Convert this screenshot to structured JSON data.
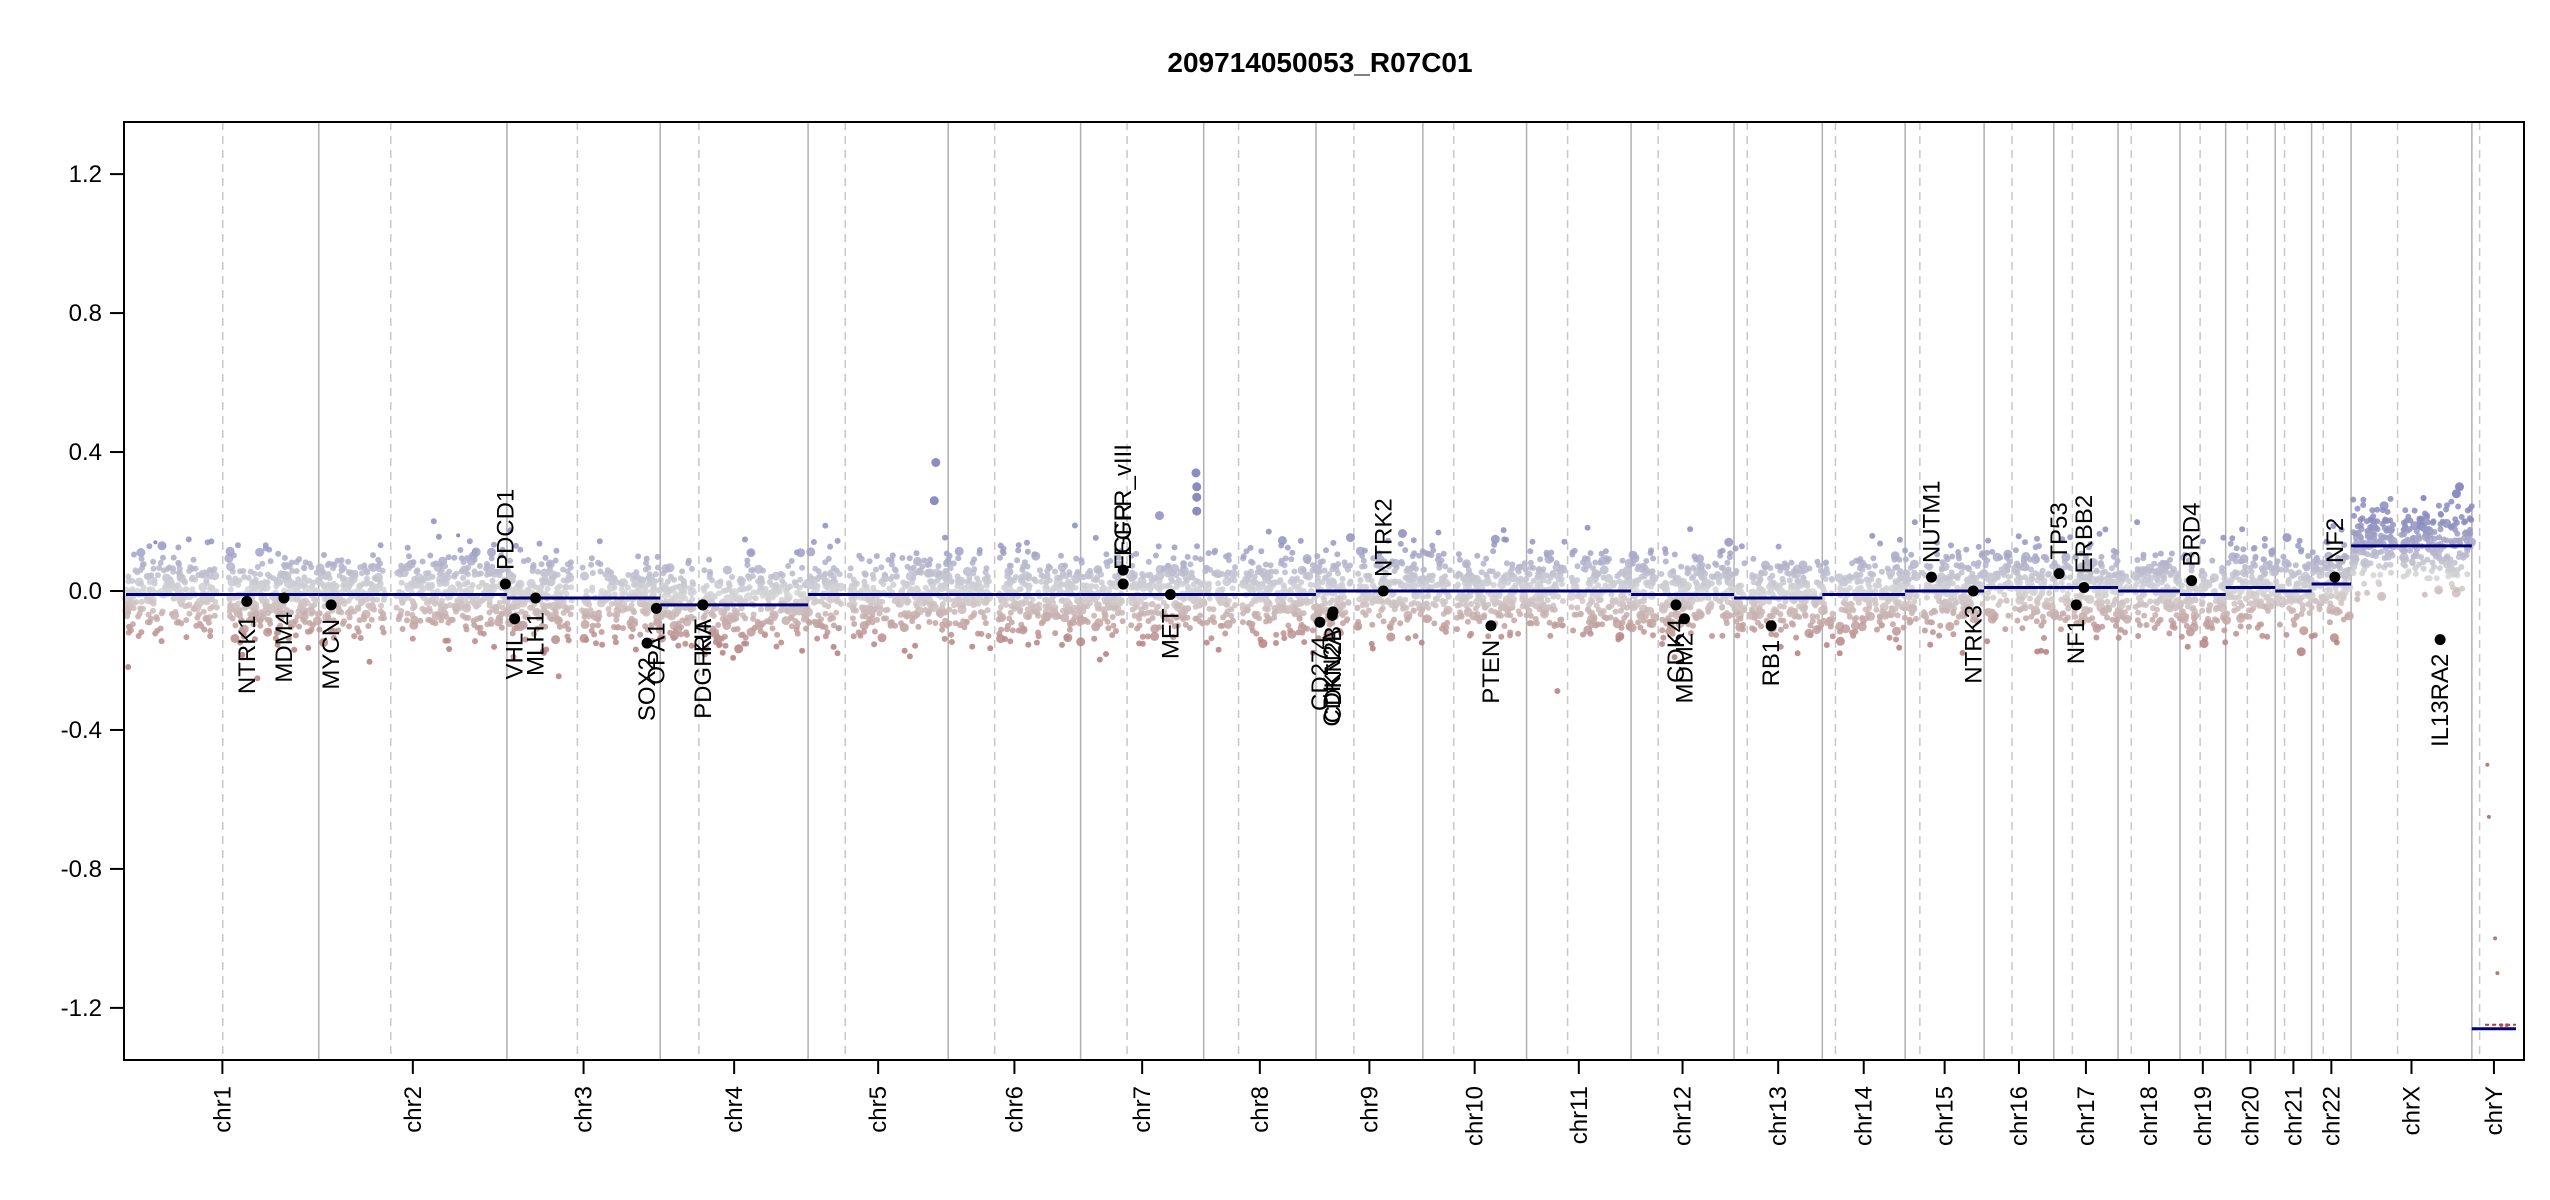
{
  "chart_data": {
    "type": "scatter",
    "title": "209714050053_R07C01",
    "xlabel": "",
    "ylabel": "",
    "ylim": [
      -1.35,
      1.35
    ],
    "yticks": [
      -1.2,
      -0.8,
      -0.4,
      0.0,
      0.4,
      0.8,
      1.2
    ],
    "ytick_labels": [
      "-1.2",
      "-0.8",
      "-0.4",
      "0.0",
      "0.4",
      "0.8",
      "1.2"
    ],
    "grid": false,
    "x_unit": "genomic position (Mb, cumulative)",
    "chromosomes": [
      {
        "name": "chr1",
        "length": 249,
        "centromere": 125,
        "seg": [
          -0.01,
          -0.01
        ]
      },
      {
        "name": "chr2",
        "length": 243,
        "centromere": 93,
        "seg": [
          -0.01,
          -0.01
        ]
      },
      {
        "name": "chr3",
        "length": 198,
        "centromere": 91,
        "seg": [
          -0.02,
          -0.02
        ]
      },
      {
        "name": "chr4",
        "length": 191,
        "centromere": 50,
        "seg": [
          -0.04,
          -0.04
        ]
      },
      {
        "name": "chr5",
        "length": 181,
        "centromere": 48,
        "seg": [
          -0.01,
          -0.01
        ]
      },
      {
        "name": "chr6",
        "length": 171,
        "centromere": 60,
        "seg": [
          -0.01,
          -0.01
        ]
      },
      {
        "name": "chr7",
        "length": 159,
        "centromere": 60,
        "seg": [
          -0.01,
          -0.01
        ]
      },
      {
        "name": "chr8",
        "length": 145,
        "centromere": 45,
        "seg": [
          -0.01,
          -0.01
        ]
      },
      {
        "name": "chr9",
        "length": 138,
        "centromere": 49,
        "seg": [
          0.0,
          0.0
        ]
      },
      {
        "name": "chr10",
        "length": 134,
        "centromere": 40,
        "seg": [
          0.0,
          0.0
        ]
      },
      {
        "name": "chr11",
        "length": 135,
        "centromere": 53,
        "seg": [
          0.0,
          0.0
        ]
      },
      {
        "name": "chr12",
        "length": 133,
        "centromere": 35,
        "seg": [
          -0.01,
          -0.01
        ]
      },
      {
        "name": "chr13",
        "length": 114,
        "centromere": 17,
        "seg": [
          -0.02,
          -0.02
        ]
      },
      {
        "name": "chr14",
        "length": 107,
        "centromere": 17,
        "seg": [
          -0.01,
          -0.01
        ]
      },
      {
        "name": "chr15",
        "length": 102,
        "centromere": 19,
        "seg": [
          0.0,
          0.0
        ]
      },
      {
        "name": "chr16",
        "length": 90,
        "centromere": 36,
        "seg": [
          0.01,
          0.01
        ]
      },
      {
        "name": "chr17",
        "length": 83,
        "centromere": 24,
        "seg": [
          0.01,
          0.01
        ]
      },
      {
        "name": "chr18",
        "length": 80,
        "centromere": 17,
        "seg": [
          0.0,
          0.0
        ]
      },
      {
        "name": "chr19",
        "length": 59,
        "centromere": 26,
        "seg": [
          -0.01,
          -0.01
        ]
      },
      {
        "name": "chr20",
        "length": 64,
        "centromere": 28,
        "seg": [
          0.01,
          0.01
        ]
      },
      {
        "name": "chr21",
        "length": 47,
        "centromere": 12,
        "seg": [
          0.0,
          0.0
        ]
      },
      {
        "name": "chr22",
        "length": 51,
        "centromere": 15,
        "seg": [
          0.02,
          0.02
        ]
      },
      {
        "name": "chrX",
        "length": 156,
        "centromere": 60,
        "seg": [
          0.13,
          0.13
        ]
      },
      {
        "name": "chrY",
        "length": 57,
        "centromere": 10,
        "seg": [
          -1.26,
          -1.26
        ]
      }
    ],
    "genes": [
      {
        "name": "NTRK1",
        "chrom": "chr1",
        "pos": 156,
        "value": -0.03,
        "side": "below"
      },
      {
        "name": "MDM4",
        "chrom": "chr1",
        "pos": 204,
        "value": -0.02,
        "side": "below"
      },
      {
        "name": "MYCN",
        "chrom": "chr2",
        "pos": 16,
        "value": -0.04,
        "side": "below"
      },
      {
        "name": "PDCD1",
        "chrom": "chr2",
        "pos": 241,
        "value": 0.02,
        "side": "above"
      },
      {
        "name": "VHL",
        "chrom": "chr3",
        "pos": 10,
        "value": -0.08,
        "side": "below"
      },
      {
        "name": "MLH1",
        "chrom": "chr3",
        "pos": 37,
        "value": -0.02,
        "side": "below"
      },
      {
        "name": "SOX2",
        "chrom": "chr3",
        "pos": 181,
        "value": -0.15,
        "side": "below"
      },
      {
        "name": "OPA1",
        "chrom": "chr3",
        "pos": 193,
        "value": -0.05,
        "side": "below"
      },
      {
        "name": "PDGFRA",
        "chrom": "chr4",
        "pos": 55,
        "value": -0.04,
        "side": "below"
      },
      {
        "name": "KIT",
        "chrom": "chr4",
        "pos": 55,
        "value": -0.04,
        "side": "below"
      },
      {
        "name": "EGFR",
        "chrom": "chr7",
        "pos": 55,
        "value": 0.02,
        "side": "above"
      },
      {
        "name": "EGFR_vIII",
        "chrom": "chr7",
        "pos": 55,
        "value": 0.06,
        "side": "above"
      },
      {
        "name": "MET",
        "chrom": "chr7",
        "pos": 116,
        "value": -0.01,
        "side": "below"
      },
      {
        "name": "CD274",
        "chrom": "chr9",
        "pos": 5,
        "value": -0.09,
        "side": "below"
      },
      {
        "name": "CDKN2A",
        "chrom": "chr9",
        "pos": 21,
        "value": -0.07,
        "side": "below"
      },
      {
        "name": "CDKN2B",
        "chrom": "chr9",
        "pos": 22,
        "value": -0.06,
        "side": "below"
      },
      {
        "name": "NTRK2",
        "chrom": "chr9",
        "pos": 87,
        "value": 0.0,
        "side": "above"
      },
      {
        "name": "PTEN",
        "chrom": "chr10",
        "pos": 88,
        "value": -0.1,
        "side": "below"
      },
      {
        "name": "CDK4",
        "chrom": "chr12",
        "pos": 58,
        "value": -0.04,
        "side": "below"
      },
      {
        "name": "MDM2",
        "chrom": "chr12",
        "pos": 69,
        "value": -0.08,
        "side": "below"
      },
      {
        "name": "RB1",
        "chrom": "chr13",
        "pos": 48,
        "value": -0.1,
        "side": "below"
      },
      {
        "name": "NUTM1",
        "chrom": "chr15",
        "pos": 34,
        "value": 0.04,
        "side": "above"
      },
      {
        "name": "NTRK3",
        "chrom": "chr15",
        "pos": 88,
        "value": 0.0,
        "side": "below"
      },
      {
        "name": "TP53",
        "chrom": "chr17",
        "pos": 7,
        "value": 0.05,
        "side": "above"
      },
      {
        "name": "NF1",
        "chrom": "chr17",
        "pos": 29,
        "value": -0.04,
        "side": "below"
      },
      {
        "name": "ERBB2",
        "chrom": "chr17",
        "pos": 39,
        "value": 0.01,
        "side": "above"
      },
      {
        "name": "BRD4",
        "chrom": "chr19",
        "pos": 15,
        "value": 0.03,
        "side": "above"
      },
      {
        "name": "NF2",
        "chrom": "chr22",
        "pos": 30,
        "value": 0.04,
        "side": "above"
      },
      {
        "name": "IL13RA2",
        "chrom": "chrX",
        "pos": 115,
        "value": -0.14,
        "side": "below"
      }
    ],
    "outliers": [
      {
        "chrom": "chr5",
        "pos": 165,
        "value": 0.37
      },
      {
        "chrom": "chr5",
        "pos": 163,
        "value": 0.26
      },
      {
        "chrom": "chr7",
        "pos": 149,
        "value": 0.34
      },
      {
        "chrom": "chr7",
        "pos": 150,
        "value": 0.3
      },
      {
        "chrom": "chr7",
        "pos": 150,
        "value": 0.27
      },
      {
        "chrom": "chr7",
        "pos": 150,
        "value": 0.23
      },
      {
        "chrom": "chr1",
        "pos": 38,
        "value": 0.14
      },
      {
        "chrom": "chr2",
        "pos": 180,
        "value": 0.16
      },
      {
        "chrom": "chrX",
        "pos": 140,
        "value": 0.3
      },
      {
        "chrom": "chrX",
        "pos": 136,
        "value": 0.28
      },
      {
        "chrom": "chrY",
        "pos": 20,
        "value": -0.5
      },
      {
        "chrom": "chrY",
        "pos": 22,
        "value": -0.65
      },
      {
        "chrom": "chrY",
        "pos": 30,
        "value": -1.0
      },
      {
        "chrom": "chrY",
        "pos": 33,
        "value": -1.1
      },
      {
        "chrom": "chrY",
        "pos": 38,
        "value": -1.25
      },
      {
        "chrom": "chrY",
        "pos": 45,
        "value": -1.25
      }
    ],
    "color_scale": {
      "gain": "#8c8cc0",
      "neutral": "#d6d6d6",
      "loss": "#b47c7c",
      "segment": "#00007a",
      "gene": "#000000",
      "chrom_boundary": "#b0b0b0",
      "centromere": "#c8c8c8"
    }
  }
}
